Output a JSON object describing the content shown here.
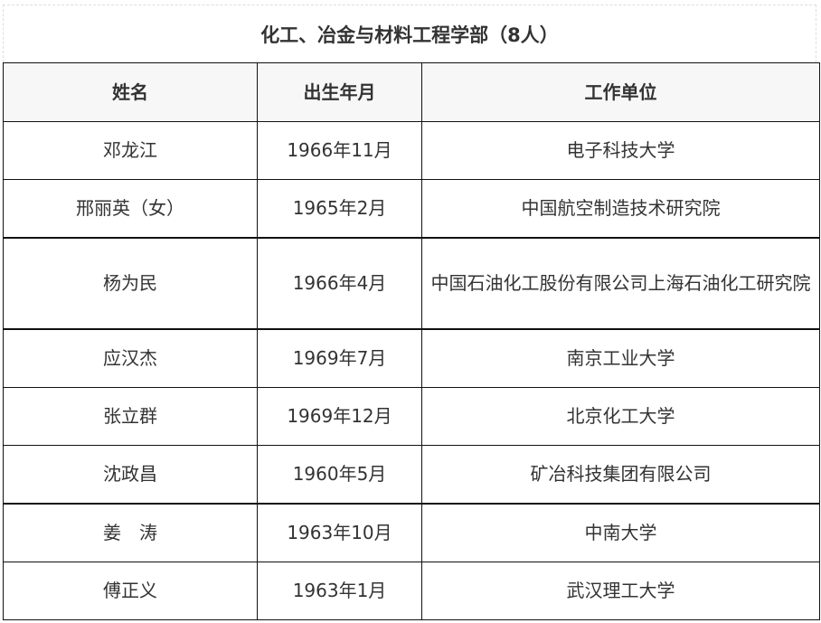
{
  "title": "化工、冶金与材料工程学部（8人）",
  "headers": [
    "姓名",
    "出生年月",
    "工作单位"
  ],
  "rows": [
    [
      "邓龙江",
      "1966年11月",
      "电子科技大学"
    ],
    [
      "邢丽英（女）",
      "1965年2月",
      "中国航空制造技术研究院"
    ],
    [
      "杨为民",
      "1966年4月",
      "中国石油化工股份有限公司上海石油化工研究院"
    ],
    [
      "应汉杰",
      "1969年7月",
      "南京工业大学"
    ],
    [
      "张立群",
      "1969年12月",
      "北京化工大学"
    ],
    [
      "沈政昌",
      "1960年5月",
      "矿冶科技集团有限公司"
    ],
    [
      "姜　涛",
      "1963年10月",
      "中南大学"
    ],
    [
      "傅正义",
      "1963年1月",
      "武汉理工大学"
    ]
  ]
}
